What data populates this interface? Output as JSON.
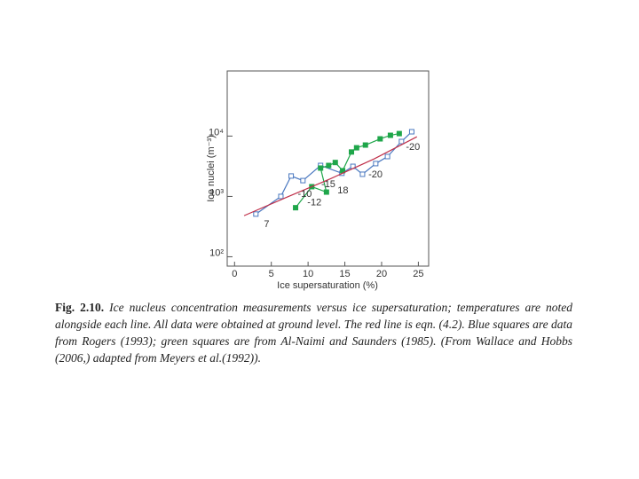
{
  "chart_data": {
    "type": "scatter",
    "xlabel": "Ice supersaturation (%)",
    "ylabel": "Ice nuclei (m⁻³)",
    "xlim": [
      -1,
      26.4
    ],
    "ylim": [
      70,
      120000
    ],
    "log_y": true,
    "xticks": [
      0,
      5,
      10,
      15,
      20,
      25
    ],
    "yticks": [
      {
        "value": 100,
        "label": "10²"
      },
      {
        "value": 1000,
        "label": "10³"
      },
      {
        "value": 10000,
        "label": "10⁴"
      }
    ],
    "series": [
      {
        "name": "Rogers (1993)",
        "color": "#4a78c0",
        "marker": "open-square",
        "x": [
          2.9,
          6.3,
          7.7,
          9.3,
          11.7,
          14.6,
          16.1,
          17.4,
          19.2,
          20.8,
          22.7,
          24.1
        ],
        "values": [
          510,
          1000,
          2180,
          1830,
          3260,
          2420,
          3150,
          2330,
          3500,
          4580,
          8130,
          11800
        ]
      },
      {
        "name": "Al-Naimi and Saunders (1985)",
        "color": "#1fa64a",
        "marker": "filled-square",
        "x": [
          8.3,
          10.5,
          12.5,
          11.7,
          12.8,
          13.7,
          14.7,
          15.9,
          16.6,
          17.8,
          19.8,
          21.2,
          22.4
        ],
        "values": [
          650,
          1450,
          1180,
          2950,
          3260,
          3650,
          2670,
          5450,
          6400,
          7100,
          9000,
          10300,
          11000
        ]
      },
      {
        "name": "eqn. (4.2)",
        "color": "#c0304a",
        "marker": "line",
        "x": [
          1.3,
          7,
          13,
          19,
          24.8
        ],
        "values": [
          480,
          960,
          1950,
          4200,
          9750
        ]
      }
    ],
    "annotations": [
      {
        "text": "7",
        "x": 4.0,
        "y": 340
      },
      {
        "text": "-10",
        "x": 8.6,
        "y": 1090
      },
      {
        "text": "-12",
        "x": 9.9,
        "y": 780
      },
      {
        "text": "-15",
        "x": 11.8,
        "y": 1560
      },
      {
        "text": "18",
        "x": 14.0,
        "y": 1230
      },
      {
        "text": "-20",
        "x": 18.2,
        "y": 2270
      },
      {
        "text": "-20",
        "x": 23.3,
        "y": 6500
      }
    ]
  },
  "caption": {
    "label": "Fig. 2.10.",
    "text": "Ice nucleus concentration measurements versus ice supersaturation; temperatures are noted alongside each line. All data were obtained at ground level. The red line is eqn. (4.2). Blue squares are data from Rogers (1993); green squares are from Al-Naimi and Saunders (1985). (From Wallace and Hobbs (2006,) adapted from Meyers et al.(1992))."
  }
}
